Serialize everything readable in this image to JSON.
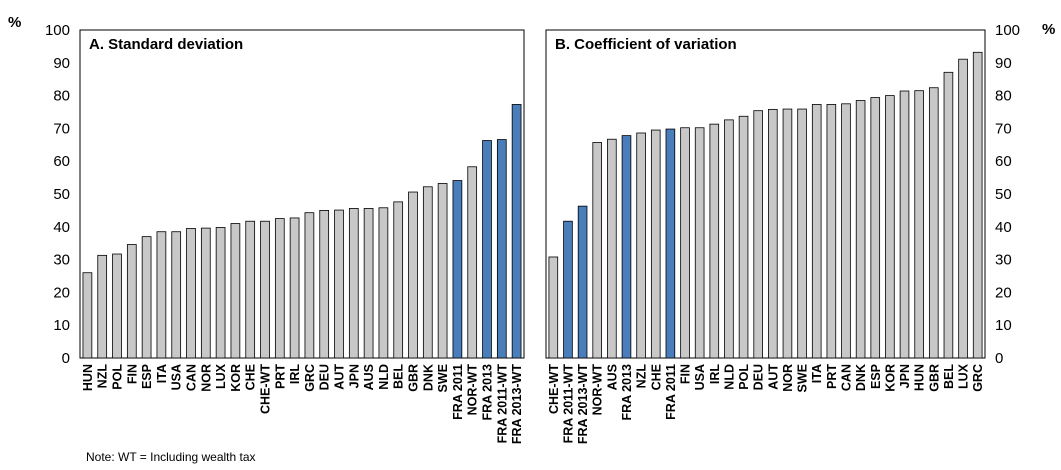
{
  "unit_label": "%",
  "note": "Note: WT = Including wealth tax",
  "colors": {
    "default_bar": "#c8c8c8",
    "highlight_bar": "#4a7ebb",
    "bar_stroke": "#000000"
  },
  "chart_data": [
    {
      "type": "bar",
      "title": "A. Standard deviation",
      "ylabel": "%",
      "ylim": [
        0,
        100
      ],
      "yticks": [
        0,
        10,
        20,
        30,
        40,
        50,
        60,
        70,
        80,
        90,
        100
      ],
      "grid": false,
      "categories": [
        "HUN",
        "NZL",
        "POL",
        "FIN",
        "ESP",
        "ITA",
        "USA",
        "CAN",
        "NOR",
        "LUX",
        "KOR",
        "CHE",
        "CHE-WT",
        "PRT",
        "IRL",
        "GRC",
        "DEU",
        "AUT",
        "JPN",
        "AUS",
        "NLD",
        "BEL",
        "GBR",
        "DNK",
        "SWE",
        "FRA 2011",
        "NOR-WT",
        "FRA 2013",
        "FRA 2011-WT",
        "FRA 2013-WT"
      ],
      "values": [
        26.0,
        31.3,
        31.7,
        34.6,
        37.0,
        38.5,
        38.5,
        39.5,
        39.6,
        39.8,
        41.0,
        41.7,
        41.7,
        42.5,
        42.7,
        44.3,
        45.0,
        45.1,
        45.6,
        45.6,
        45.8,
        47.6,
        50.6,
        52.2,
        53.2,
        54.1,
        58.3,
        66.3,
        66.6,
        77.3
      ],
      "highlight": [
        "FRA 2011",
        "FRA 2013",
        "FRA 2011-WT",
        "FRA 2013-WT"
      ]
    },
    {
      "type": "bar",
      "title": "B. Coefficient of variation",
      "ylabel": "%",
      "ylim": [
        0,
        100
      ],
      "yticks": [
        0,
        10,
        20,
        30,
        40,
        50,
        60,
        70,
        80,
        90,
        100
      ],
      "grid": false,
      "categories": [
        "CHE-WT",
        "FRA 2011-WT",
        "FRA 2013-WT",
        "NOR-WT",
        "AUS",
        "FRA 2013",
        "NZL",
        "CHE",
        "FRA 2011",
        "FIN",
        "USA",
        "IRL",
        "NLD",
        "POL",
        "DEU",
        "AUT",
        "NOR",
        "SWE",
        "ITA",
        "PRT",
        "CAN",
        "DNK",
        "ESP",
        "KOR",
        "JPN",
        "HUN",
        "GBR",
        "BEL",
        "LUX",
        "GRC"
      ],
      "values": [
        30.8,
        41.7,
        46.3,
        65.7,
        66.7,
        67.8,
        68.6,
        69.5,
        69.8,
        70.2,
        70.2,
        71.3,
        72.6,
        73.7,
        75.4,
        75.8,
        75.9,
        75.9,
        77.3,
        77.3,
        77.5,
        78.5,
        79.4,
        80.0,
        81.4,
        81.5,
        82.4,
        87.1,
        91.1,
        93.2
      ],
      "highlight": [
        "FRA 2011-WT",
        "FRA 2013-WT",
        "FRA 2013",
        "FRA 2011"
      ]
    }
  ]
}
